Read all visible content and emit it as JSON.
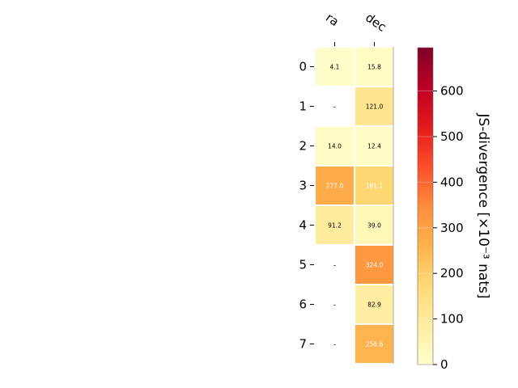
{
  "chart_data": {
    "type": "heatmap",
    "columns": [
      "ra",
      "dec"
    ],
    "rows": [
      "0",
      "1",
      "2",
      "3",
      "4",
      "5",
      "6",
      "7"
    ],
    "values": [
      [
        4.1,
        15.8
      ],
      [
        null,
        121.0
      ],
      [
        14.0,
        12.4
      ],
      [
        277.0,
        181.1
      ],
      [
        91.2,
        39.0
      ],
      [
        null,
        324.0
      ],
      [
        null,
        82.9
      ],
      [
        null,
        256.6
      ]
    ],
    "cell_labels": [
      [
        "4.1",
        "15.8"
      ],
      [
        "–",
        "121.0"
      ],
      [
        "14.0",
        "12.4"
      ],
      [
        "277.0",
        "181.1"
      ],
      [
        "91.2",
        "39.0"
      ],
      [
        "–",
        "324.0"
      ],
      [
        "–",
        "82.9"
      ],
      [
        "–",
        "256.6"
      ]
    ],
    "colorbar": {
      "label": "JS-divergence [×10⁻³ nats]",
      "vmin": 0,
      "vmax": 695,
      "ticks": [
        0,
        100,
        200,
        300,
        400,
        500,
        600
      ],
      "colormap": "YlOrRd"
    },
    "legend": "right",
    "grid": false
  },
  "colors": {
    "ylorrd": [
      "#ffffcc",
      "#ffeda0",
      "#fed976",
      "#feb24c",
      "#fd8d3c",
      "#fc4e2a",
      "#e31a1c",
      "#bd0026",
      "#800026"
    ],
    "cell_border": "#ffffff",
    "text_dark": "#000000",
    "text_light": "#ffffff"
  }
}
